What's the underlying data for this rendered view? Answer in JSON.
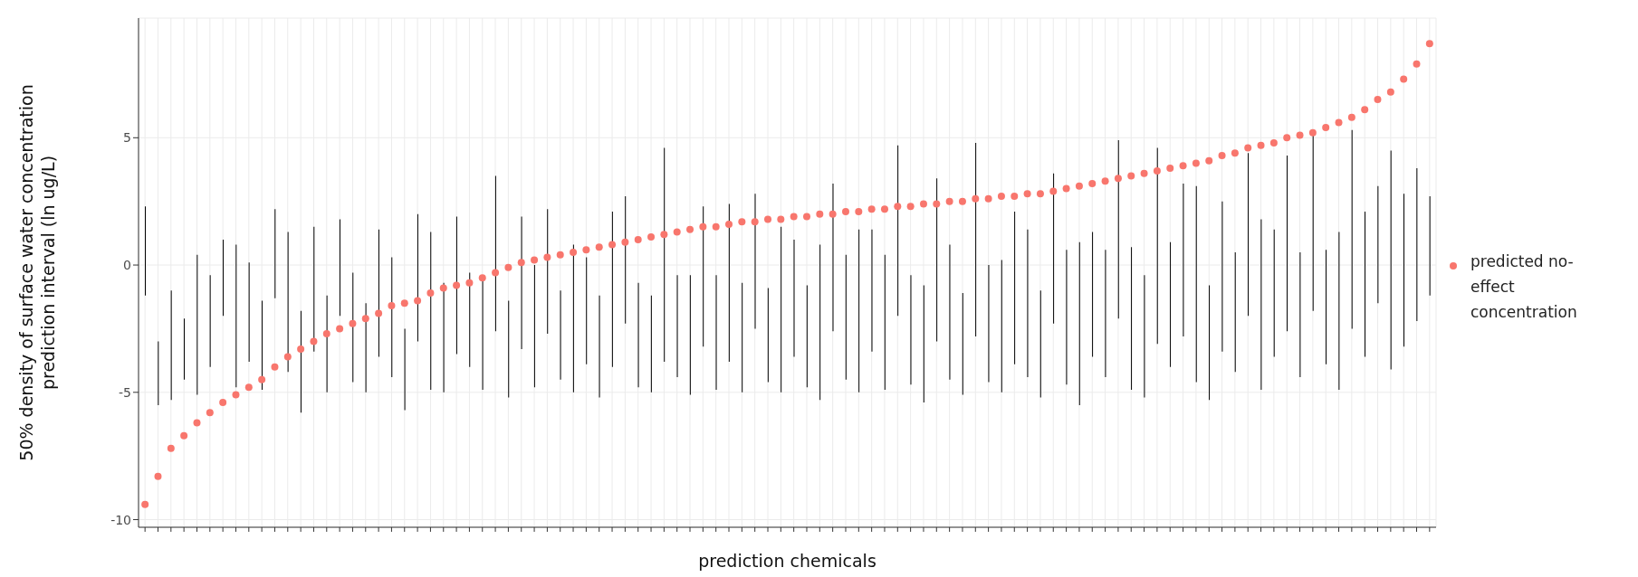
{
  "chart_data": {
    "type": "scatter",
    "xlabel": "prediction chemicals",
    "ylabel": "50% density of surface water concentration\nprediction interval (ln ug/L)",
    "categories": [
      null,
      null,
      null,
      null,
      null,
      null,
      null,
      null,
      null,
      null,
      null,
      null,
      null,
      null,
      null,
      null,
      null,
      null,
      null,
      null,
      null,
      null,
      null,
      null,
      null,
      null,
      null,
      null,
      null,
      null,
      null,
      null,
      null,
      null,
      null,
      null,
      null,
      null,
      null,
      null,
      null,
      null,
      null,
      null,
      null,
      null,
      null,
      null,
      null,
      null,
      null,
      null,
      null,
      null,
      null,
      null,
      null,
      null,
      null,
      null,
      null,
      null,
      null,
      null,
      null,
      null,
      null,
      null,
      null,
      null,
      null,
      null,
      null,
      null,
      null,
      null,
      null,
      null,
      null,
      null,
      null,
      null,
      null,
      null,
      null,
      null,
      null,
      null,
      null,
      null,
      null,
      null,
      null,
      null,
      null,
      null,
      null,
      null,
      null,
      null
    ],
    "series": [
      {
        "type": "bar",
        "color": "#000000",
        "base": [
          -1.2,
          -5.5,
          -5.3,
          -4.5,
          -5.1,
          -4.0,
          -2.0,
          -4.8,
          -3.8,
          -4.9,
          -1.3,
          -4.2,
          -5.8,
          -3.4,
          -5.0,
          -2.0,
          -4.6,
          -5.0,
          -3.6,
          -4.4,
          -5.7,
          -3.0,
          -4.9,
          -5.0,
          -3.5,
          -4.0,
          -4.9,
          -2.6,
          -5.2,
          -3.3,
          -4.8,
          -2.7,
          -4.5,
          -5.0,
          -3.9,
          -5.2,
          -4.0,
          -2.3,
          -4.8,
          -5.0,
          -3.8,
          -4.4,
          -5.1,
          -3.2,
          -4.9,
          -3.8,
          -5.0,
          -2.5,
          -4.6,
          -5.0,
          -3.6,
          -4.8,
          -5.3,
          -2.6,
          -4.5,
          -5.0,
          -3.4,
          -4.9,
          -2.0,
          -4.7,
          -5.4,
          -3.0,
          -4.5,
          -5.1,
          -2.8,
          -4.6,
          -5.0,
          -3.9,
          -4.4,
          -5.2,
          -2.3,
          -4.7,
          -5.5,
          -3.6,
          -4.4,
          -2.1,
          -4.9,
          -5.2,
          -3.1,
          -4.0,
          -2.8,
          -4.6,
          -5.3,
          -3.4,
          -4.2,
          -2.0,
          -4.9,
          -3.6,
          -2.6,
          -4.4,
          -1.8,
          -3.9,
          -4.9,
          -2.5,
          -3.6,
          -1.5,
          -4.1,
          -3.2,
          -2.2,
          -1.2
        ],
        "values": [
          3.5,
          2.5,
          4.3,
          2.4,
          5.5,
          3.6,
          3.0,
          5.6,
          3.9,
          3.5,
          3.5,
          5.5,
          4.0,
          4.9,
          3.8,
          3.8,
          4.3,
          3.5,
          5.0,
          4.7,
          3.2,
          5.0,
          6.2,
          4.3,
          5.4,
          3.7,
          4.3,
          6.1,
          3.8,
          5.2,
          4.8,
          4.9,
          3.5,
          5.8,
          4.2,
          4.0,
          6.1,
          5.0,
          4.1,
          3.8,
          8.4,
          4.0,
          4.7,
          5.5,
          4.5,
          6.2,
          4.3,
          5.3,
          3.7,
          6.5,
          4.6,
          4.0,
          6.1,
          5.8,
          4.9,
          6.4,
          4.8,
          5.3,
          6.7,
          4.3,
          4.6,
          6.4,
          5.3,
          4.0,
          7.6,
          4.6,
          5.2,
          6.0,
          5.8,
          4.2,
          5.9,
          5.3,
          6.4,
          4.9,
          5.0,
          7.0,
          5.6,
          4.8,
          7.7,
          4.9,
          6.0,
          7.7,
          4.5,
          5.9,
          4.7,
          6.4,
          6.7,
          5.0,
          6.9,
          4.9,
          6.9,
          4.5,
          6.2,
          7.8,
          5.7,
          4.6,
          8.6,
          6.0,
          6.0,
          3.9
        ]
      },
      {
        "name": "predicted no-effect concentration",
        "color": "#f8766d",
        "values": [
          -9.4,
          -8.3,
          -7.2,
          -6.7,
          -6.2,
          -5.8,
          -5.4,
          -5.1,
          -4.8,
          -4.5,
          -4.0,
          -3.6,
          -3.3,
          -3.0,
          -2.7,
          -2.5,
          -2.3,
          -2.1,
          -1.9,
          -1.6,
          -1.5,
          -1.4,
          -1.1,
          -0.9,
          -0.8,
          -0.7,
          -0.5,
          -0.3,
          -0.1,
          0.1,
          0.2,
          0.3,
          0.4,
          0.5,
          0.6,
          0.7,
          0.8,
          0.9,
          1.0,
          1.1,
          1.2,
          1.3,
          1.4,
          1.5,
          1.5,
          1.6,
          1.7,
          1.7,
          1.8,
          1.8,
          1.9,
          1.9,
          2.0,
          2.0,
          2.1,
          2.1,
          2.2,
          2.2,
          2.3,
          2.3,
          2.4,
          2.4,
          2.5,
          2.5,
          2.6,
          2.6,
          2.7,
          2.7,
          2.8,
          2.8,
          2.9,
          3.0,
          3.1,
          3.2,
          3.3,
          3.4,
          3.5,
          3.6,
          3.7,
          3.8,
          3.9,
          4.0,
          4.1,
          4.3,
          4.4,
          4.6,
          4.7,
          4.8,
          5.0,
          5.1,
          5.2,
          5.4,
          5.6,
          5.8,
          6.1,
          6.5,
          6.8,
          7.3,
          7.9,
          8.7
        ]
      }
    ],
    "ylim": [
      -10.3,
      9.7
    ],
    "yticks": [
      -10,
      -5,
      0,
      5
    ],
    "grid": true,
    "legend": "right",
    "marker": "circle"
  }
}
